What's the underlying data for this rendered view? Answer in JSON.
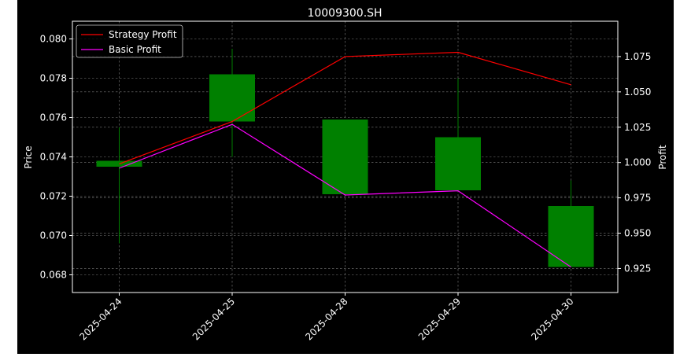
{
  "chart_data": {
    "type": "candlestick",
    "title": "10009300.SH",
    "xlabel": "",
    "ylabel_left": "Price",
    "ylabel_right": "Profit",
    "categories": [
      "2025-04-24",
      "2025-04-25",
      "2025-04-28",
      "2025-04-29",
      "2025-04-30"
    ],
    "candles": [
      {
        "date": "2025-04-24",
        "open": 0.0735,
        "close": 0.0738,
        "low": 0.0696,
        "high": 0.0755
      },
      {
        "date": "2025-04-25",
        "open": 0.0758,
        "close": 0.0782,
        "low": 0.074,
        "high": 0.0795
      },
      {
        "date": "2025-04-28",
        "open": 0.0721,
        "close": 0.0759,
        "low": 0.0721,
        "high": 0.0759
      },
      {
        "date": "2025-04-29",
        "open": 0.0723,
        "close": 0.075,
        "low": 0.0723,
        "high": 0.078
      },
      {
        "date": "2025-04-30",
        "open": 0.0684,
        "close": 0.0715,
        "low": 0.0684,
        "high": 0.0728
      }
    ],
    "series": [
      {
        "name": "Strategy Profit",
        "color": "#ff0000",
        "values": [
          0.999,
          1.029,
          1.075,
          1.078,
          1.055
        ]
      },
      {
        "name": "Basic Profit",
        "color": "#ff00ff",
        "values": [
          0.996,
          1.027,
          0.977,
          0.98,
          0.926
        ]
      }
    ],
    "ylim_left": [
      0.0671,
      0.0809
    ],
    "ylim_right": [
      0.908,
      1.1
    ],
    "yticks_left": [
      "0.068",
      "0.070",
      "0.072",
      "0.074",
      "0.076",
      "0.078",
      "0.080"
    ],
    "yticks_right": [
      "0.925",
      "0.950",
      "0.975",
      "1.000",
      "1.025",
      "1.050",
      "1.075"
    ],
    "grid": true,
    "legend_position": "top-left",
    "candle_color": "#008000",
    "background": "#000000",
    "foreground": "#ffffff"
  }
}
